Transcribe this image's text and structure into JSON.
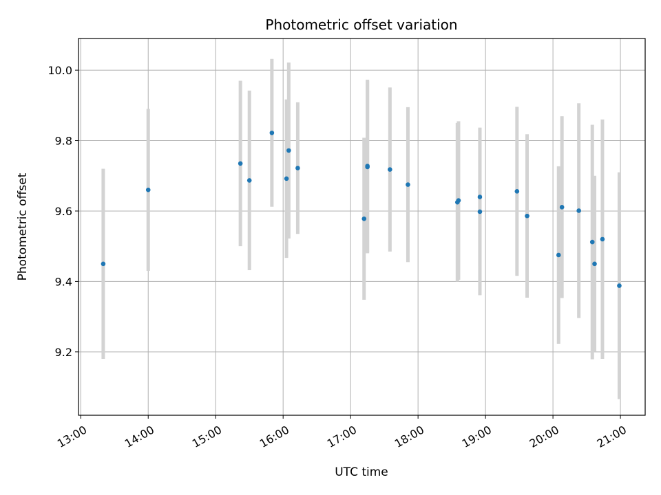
{
  "chart_data": {
    "type": "scatter",
    "title": "Photometric offset variation",
    "xlabel": "UTC time",
    "ylabel": "Photometric offset",
    "x_unit": "time of day (UTC)",
    "xlim": [
      "12:58",
      "21:22"
    ],
    "ylim": [
      9.02,
      10.09
    ],
    "x_ticks": [
      "13:00",
      "14:00",
      "15:00",
      "16:00",
      "17:00",
      "18:00",
      "19:00",
      "20:00",
      "21:00"
    ],
    "y_ticks": [
      "9.2",
      "9.4",
      "9.6",
      "9.8",
      "10.0"
    ],
    "grid": true,
    "legend": "none",
    "point_color": "#1f77b4",
    "errorbar_color": "#d3d3d3",
    "points": [
      {
        "x": "13:20",
        "y": 9.45,
        "err": 0.27
      },
      {
        "x": "14:00",
        "y": 9.66,
        "err": 0.23
      },
      {
        "x": "15:22",
        "y": 9.735,
        "err": 0.235
      },
      {
        "x": "15:30",
        "y": 9.687,
        "err": 0.255
      },
      {
        "x": "15:50",
        "y": 9.822,
        "err": 0.21
      },
      {
        "x": "16:03",
        "y": 9.692,
        "err": 0.225
      },
      {
        "x": "16:05",
        "y": 9.772,
        "err": 0.25
      },
      {
        "x": "16:13",
        "y": 9.722,
        "err": 0.187
      },
      {
        "x": "17:12",
        "y": 9.578,
        "err": 0.23
      },
      {
        "x": "17:15",
        "y": 9.725,
        "err": 0.245
      },
      {
        "x": "17:15",
        "y": 9.728,
        "err": 0.245
      },
      {
        "x": "17:35",
        "y": 9.718,
        "err": 0.233
      },
      {
        "x": "17:51",
        "y": 9.675,
        "err": 0.22
      },
      {
        "x": "18:35",
        "y": 9.625,
        "err": 0.225
      },
      {
        "x": "18:36",
        "y": 9.63,
        "err": 0.225
      },
      {
        "x": "18:55",
        "y": 9.64,
        "err": 0.197
      },
      {
        "x": "18:55",
        "y": 9.598,
        "err": 0.237
      },
      {
        "x": "19:28",
        "y": 9.656,
        "err": 0.24
      },
      {
        "x": "19:37",
        "y": 9.586,
        "err": 0.232
      },
      {
        "x": "20:05",
        "y": 9.475,
        "err": 0.252
      },
      {
        "x": "20:08",
        "y": 9.611,
        "err": 0.258
      },
      {
        "x": "20:23",
        "y": 9.601,
        "err": 0.305
      },
      {
        "x": "20:35",
        "y": 9.512,
        "err": 0.333
      },
      {
        "x": "20:37",
        "y": 9.45,
        "err": 0.25
      },
      {
        "x": "20:44",
        "y": 9.52,
        "err": 0.34
      },
      {
        "x": "20:59",
        "y": 9.388,
        "err": 0.322
      }
    ]
  }
}
